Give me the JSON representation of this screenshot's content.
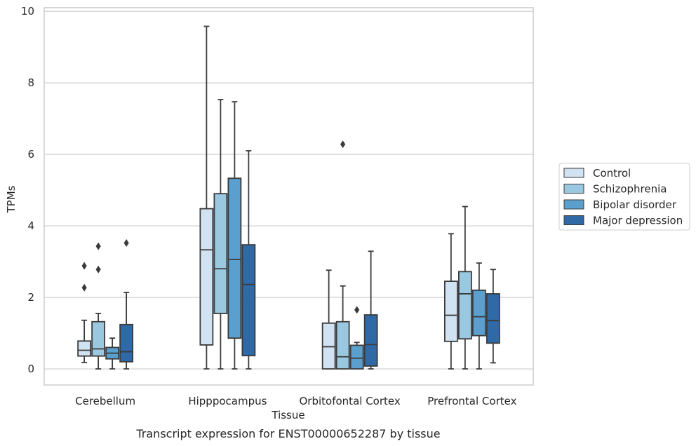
{
  "chart_data": {
    "type": "box",
    "xlabel": "Tissue",
    "ylabel": "TPMs",
    "ylim": [
      -0.45,
      10.1
    ],
    "yticks": [
      0,
      2,
      4,
      6,
      8,
      10
    ],
    "grid": "horizontal",
    "legend_placement": "center-right",
    "categories": [
      "Cerebellum",
      "Hipppocampus",
      "Orbitofontal Cortex",
      "Prefrontal Cortex"
    ],
    "series": [
      {
        "name": "Control",
        "color": "#d1e2f2",
        "boxes": [
          {
            "whislo": 0.18,
            "q1": 0.36,
            "med": 0.52,
            "q3": 0.78,
            "whishi": 1.36,
            "fliers": [
              2.27,
              2.88
            ]
          },
          {
            "whislo": 0.0,
            "q1": 0.67,
            "med": 3.33,
            "q3": 4.48,
            "whishi": 9.58,
            "fliers": []
          },
          {
            "whislo": 0.0,
            "q1": 0.0,
            "med": 0.62,
            "q3": 1.28,
            "whishi": 2.76,
            "fliers": []
          },
          {
            "whislo": 0.0,
            "q1": 0.77,
            "med": 1.5,
            "q3": 2.45,
            "whishi": 3.78,
            "fliers": []
          }
        ]
      },
      {
        "name": "Schizophrenia",
        "color": "#9ac8e0",
        "boxes": [
          {
            "whislo": 0.0,
            "q1": 0.36,
            "med": 0.56,
            "q3": 1.32,
            "whishi": 1.55,
            "fliers": [
              2.78,
              3.43
            ]
          },
          {
            "whislo": 0.0,
            "q1": 1.55,
            "med": 2.8,
            "q3": 4.9,
            "whishi": 7.53,
            "fliers": []
          },
          {
            "whislo": 0.0,
            "q1": 0.0,
            "med": 0.34,
            "q3": 1.32,
            "whishi": 2.32,
            "fliers": [
              6.28
            ]
          },
          {
            "whislo": 0.0,
            "q1": 0.84,
            "med": 2.1,
            "q3": 2.72,
            "whishi": 4.54,
            "fliers": []
          }
        ]
      },
      {
        "name": "Bipolar disorder",
        "color": "#5a9fcd",
        "boxes": [
          {
            "whislo": 0.0,
            "q1": 0.28,
            "med": 0.44,
            "q3": 0.6,
            "whishi": 0.86,
            "fliers": []
          },
          {
            "whislo": 0.0,
            "q1": 0.86,
            "med": 3.06,
            "q3": 5.33,
            "whishi": 7.47,
            "fliers": []
          },
          {
            "whislo": 0.0,
            "q1": 0.0,
            "med": 0.3,
            "q3": 0.66,
            "whishi": 0.74,
            "fliers": [
              1.65
            ]
          },
          {
            "whislo": 0.0,
            "q1": 0.93,
            "med": 1.46,
            "q3": 2.2,
            "whishi": 2.96,
            "fliers": []
          }
        ]
      },
      {
        "name": "Major depression",
        "color": "#2f6aa6",
        "boxes": [
          {
            "whislo": 0.0,
            "q1": 0.2,
            "med": 0.48,
            "q3": 1.24,
            "whishi": 2.14,
            "fliers": [
              3.52
            ]
          },
          {
            "whislo": 0.0,
            "q1": 0.37,
            "med": 2.36,
            "q3": 3.47,
            "whishi": 6.1,
            "fliers": []
          },
          {
            "whislo": 0.0,
            "q1": 0.08,
            "med": 0.68,
            "q3": 1.51,
            "whishi": 3.29,
            "fliers": []
          },
          {
            "whislo": 0.17,
            "q1": 0.72,
            "med": 1.35,
            "q3": 2.1,
            "whishi": 2.78,
            "fliers": []
          }
        ]
      }
    ],
    "caption": "Transcript expression for ENST00000652287 by tissue"
  }
}
